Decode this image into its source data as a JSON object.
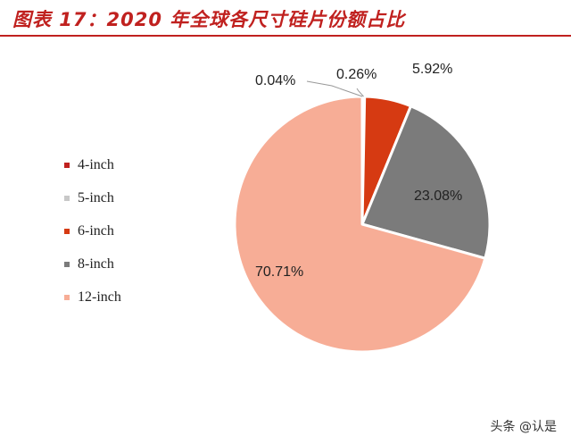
{
  "figure": {
    "title": "图表 17：2020 年全球各尺寸硅片份额占比"
  },
  "chart_data": {
    "type": "pie",
    "title": "图表 17：2020 年全球各尺寸硅片份额占比",
    "legend_position": "left",
    "slices": [
      {
        "label": "4-inch",
        "value": 0.04,
        "value_label": "0.04%",
        "color": "#c0211f"
      },
      {
        "label": "5-inch",
        "value": 0.26,
        "value_label": "0.26%",
        "color": "#c8c8c8"
      },
      {
        "label": "6-inch",
        "value": 5.92,
        "value_label": "5.92%",
        "color": "#d63a12"
      },
      {
        "label": "8-inch",
        "value": 23.08,
        "value_label": "23.08%",
        "color": "#7b7b7b"
      },
      {
        "label": "12-inch",
        "value": 70.71,
        "value_label": "70.71%",
        "color": "#f7ad96"
      }
    ]
  },
  "watermark": "头条 @认是"
}
